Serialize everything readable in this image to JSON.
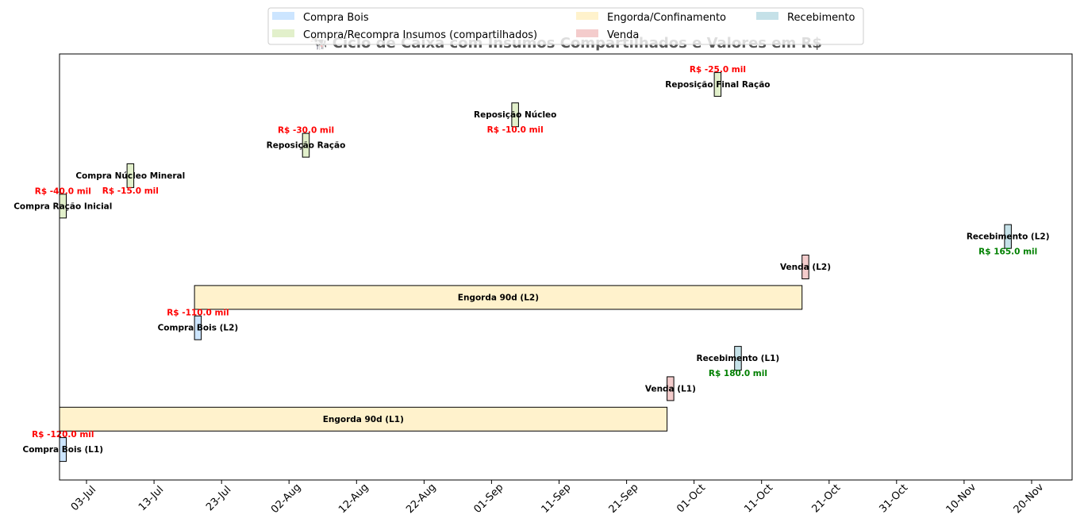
{
  "chart_data": {
    "type": "gantt",
    "title": "🐄 Ciclo de Caixa com Insumos Compartilhados e Valores em R$",
    "x_axis": {
      "type": "date",
      "range": [
        "2025-06-29",
        "2025-11-26"
      ],
      "tick_labels": [
        "03-Jul",
        "13-Jul",
        "23-Jul",
        "02-Aug",
        "12-Aug",
        "22-Aug",
        "01-Sep",
        "11-Sep",
        "21-Sep",
        "01-Oct",
        "11-Oct",
        "21-Oct",
        "31-Oct",
        "10-Nov",
        "20-Nov"
      ],
      "tick_dates": [
        "2025-07-03",
        "2025-07-13",
        "2025-07-23",
        "2025-08-02",
        "2025-08-12",
        "2025-08-22",
        "2025-09-01",
        "2025-09-11",
        "2025-09-21",
        "2025-10-01",
        "2025-10-11",
        "2025-10-21",
        "2025-10-31",
        "2025-11-10",
        "2025-11-20"
      ]
    },
    "grid": false,
    "legend": {
      "placement": "top-center",
      "entries": [
        {
          "label": "Compra Bois",
          "color": "#cce5ff"
        },
        {
          "label": "Compra/Recompra Insumos (compartilhados)",
          "color": "#e2f0cb"
        },
        {
          "label": "Engorda/Confinamento",
          "color": "#fff2cc"
        },
        {
          "label": "Venda",
          "color": "#f4cccc"
        },
        {
          "label": "Recebimento",
          "color": "#c5e1e8"
        }
      ]
    },
    "tasks": [
      {
        "label": "Compra Bois (L1)",
        "start": "2025-06-29",
        "end": "2025-06-30",
        "category": "Compra Bois",
        "value": "R$ -120.0 mil",
        "value_sign": "negative",
        "value_pos": "above"
      },
      {
        "label": "Engorda 90d (L1)",
        "start": "2025-06-29",
        "end": "2025-09-27",
        "category": "Engorda/Confinamento",
        "value": "",
        "value_sign": "",
        "value_pos": ""
      },
      {
        "label": "Venda (L1)",
        "start": "2025-09-27",
        "end": "2025-09-28",
        "category": "Venda",
        "value": "",
        "value_sign": "",
        "value_pos": ""
      },
      {
        "label": "Recebimento (L1)",
        "start": "2025-10-07",
        "end": "2025-10-08",
        "category": "Recebimento",
        "value": "R$ 180.0 mil",
        "value_sign": "positive",
        "value_pos": "below"
      },
      {
        "label": "Compra Bois (L2)",
        "start": "2025-07-19",
        "end": "2025-07-20",
        "category": "Compra Bois",
        "value": "R$ -110.0 mil",
        "value_sign": "negative",
        "value_pos": "above"
      },
      {
        "label": "Engorda 90d (L2)",
        "start": "2025-07-19",
        "end": "2025-10-17",
        "category": "Engorda/Confinamento",
        "value": "",
        "value_sign": "",
        "value_pos": ""
      },
      {
        "label": "Venda (L2)",
        "start": "2025-10-17",
        "end": "2025-10-18",
        "category": "Venda",
        "value": "",
        "value_sign": "",
        "value_pos": ""
      },
      {
        "label": "Recebimento (L2)",
        "start": "2025-11-16",
        "end": "2025-11-17",
        "category": "Recebimento",
        "value": "R$ 165.0 mil",
        "value_sign": "positive",
        "value_pos": "below"
      },
      {
        "label": "Compra Ração Inicial",
        "start": "2025-06-29",
        "end": "2025-06-30",
        "category": "Compra/Recompra Insumos (compartilhados)",
        "value": "R$ -40.0 mil",
        "value_sign": "negative",
        "value_pos": "above"
      },
      {
        "label": "Compra Núcleo Mineral",
        "start": "2025-07-09",
        "end": "2025-07-10",
        "category": "Compra/Recompra Insumos (compartilhados)",
        "value": "R$ -15.0 mil",
        "value_sign": "negative",
        "value_pos": "below"
      },
      {
        "label": "Reposição Ração",
        "start": "2025-08-04",
        "end": "2025-08-05",
        "category": "Compra/Recompra Insumos (compartilhados)",
        "value": "R$ -30.0 mil",
        "value_sign": "negative",
        "value_pos": "above"
      },
      {
        "label": "Reposição Núcleo",
        "start": "2025-09-04",
        "end": "2025-09-05",
        "category": "Compra/Recompra Insumos (compartilhados)",
        "value": "R$ -10.0 mil",
        "value_sign": "negative",
        "value_pos": "below"
      },
      {
        "label": "Reposição Final Ração",
        "start": "2025-10-04",
        "end": "2025-10-05",
        "category": "Compra/Recompra Insumos (compartilhados)",
        "value": "R$ -25.0 mil",
        "value_sign": "negative",
        "value_pos": "above"
      }
    ]
  },
  "colors": {
    "negative": "#ff0000",
    "positive": "#008000",
    "edge": "#000000"
  }
}
